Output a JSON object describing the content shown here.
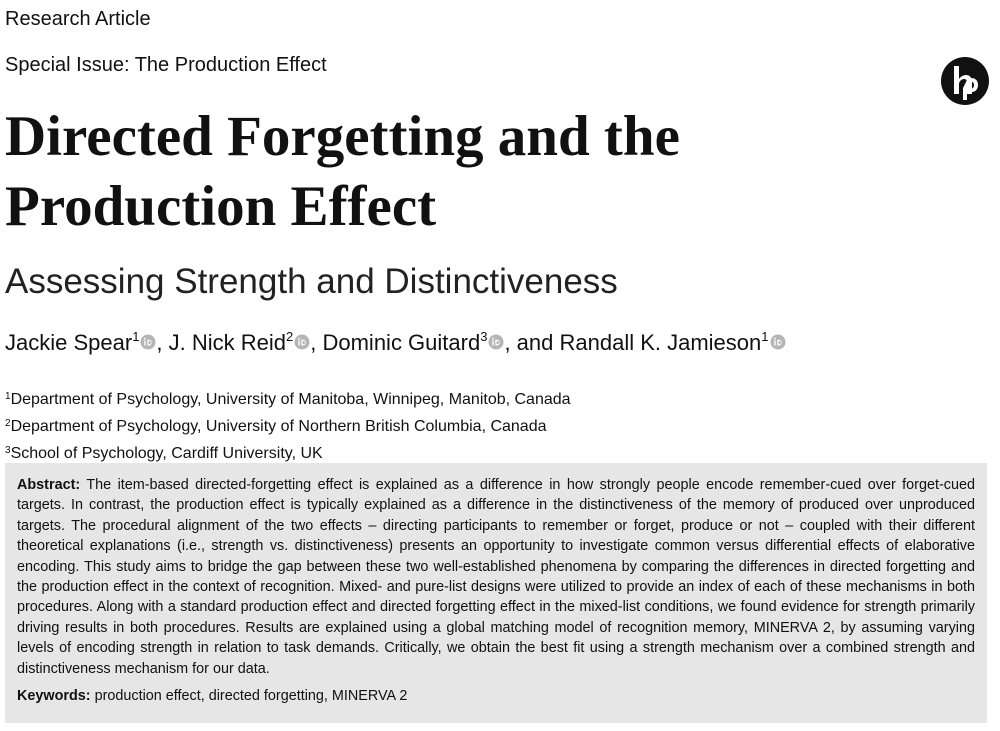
{
  "header": {
    "article_type": "Research Article",
    "special_issue": "Special Issue: The Production Effect"
  },
  "title": "Directed Forgetting and the Production Effect",
  "subtitle": "Assessing Strength and Distinctiveness",
  "authors": [
    {
      "name": "Jackie Spear",
      "sup": "1"
    },
    {
      "name": "J. Nick Reid",
      "sup": "2"
    },
    {
      "name": "Dominic Guitard",
      "sup": "3"
    },
    {
      "name": "Randall K. Jamieson",
      "sup": "1"
    }
  ],
  "author_separators": [
    ", ",
    ", ",
    ", and "
  ],
  "affiliations": [
    {
      "sup": "1",
      "text": "Department of Psychology, University of Manitoba, Winnipeg, Manitob, Canada"
    },
    {
      "sup": "2",
      "text": "Department of Psychology, University of Northern British Columbia, Canada"
    },
    {
      "sup": "3",
      "text": "School of Psychology, Cardiff University, UK"
    }
  ],
  "abstract": {
    "label": "Abstract:",
    "text": "The item-based directed-forgetting effect is explained as a difference in how strongly people encode remember-cued over forget-cued targets. In contrast, the production effect is typically explained as a difference in the distinctiveness of the memory of produced over unproduced targets. The procedural alignment of the two effects – directing participants to remember or forget, produce or not – coupled with their different theoretical explanations (i.e., strength vs. distinctiveness) presents an opportunity to investigate common versus differential effects of elaborative encoding. This study aims to bridge the gap between these two well-established phenomena by comparing the differences in directed forgetting and the production effect in the context of recognition. Mixed- and pure-list designs were utilized to provide an index of each of these mechanisms in both procedures. Along with a standard production effect and directed forgetting effect in the mixed-list conditions, we found evidence for strength primarily driving results in both procedures. Results are explained using a global matching model of recognition memory, MINERVA 2, by assuming varying levels of encoding strength in relation to task demands. Critically, we obtain the best fit using a strength mechanism over a combined strength and distinctiveness mechanism for our data."
  },
  "keywords": {
    "label": "Keywords:",
    "text": "production effect, directed forgetting, MINERVA 2"
  }
}
